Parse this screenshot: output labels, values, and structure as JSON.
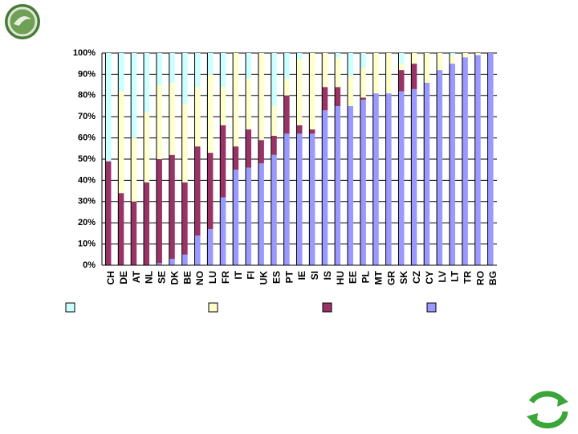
{
  "chart_data": {
    "type": "stacked_bar",
    "categories": [
      "CH",
      "DE",
      "AT",
      "NL",
      "SE",
      "DK",
      "BE",
      "NO",
      "LU",
      "FR",
      "IT",
      "FI",
      "UK",
      "ES",
      "PT",
      "IE",
      "SI",
      "IS",
      "HU",
      "EE",
      "PL",
      "MT",
      "GR",
      "SK",
      "CZ",
      "CY",
      "LV",
      "LT",
      "TR",
      "RO",
      "BG"
    ],
    "series": [
      {
        "color": "#9999ff",
        "values": [
          0,
          0,
          0,
          0,
          1,
          3,
          5,
          14,
          17,
          32,
          45,
          46,
          48,
          52,
          62,
          62,
          62,
          73,
          75,
          75,
          78,
          81,
          81,
          82,
          83,
          86,
          92,
          95,
          98,
          99,
          100
        ]
      },
      {
        "color": "#993366",
        "values": [
          49,
          34,
          30,
          39,
          49,
          49,
          34,
          42,
          36,
          34,
          11,
          18,
          11,
          9,
          18,
          4,
          2,
          11,
          9,
          0,
          1,
          0,
          0,
          10,
          12,
          0,
          0,
          0,
          0,
          0,
          0
        ]
      },
      {
        "color": "#ffffcc",
        "values": [
          0,
          48,
          30,
          33,
          35,
          34,
          37,
          28,
          37,
          18,
          44,
          24,
          41,
          14,
          8,
          31,
          36,
          16,
          14,
          14,
          14,
          19,
          19,
          3,
          5,
          14,
          8,
          4,
          2,
          1,
          0
        ]
      },
      {
        "color": "#ccffff",
        "values": [
          51,
          18,
          40,
          28,
          15,
          14,
          24,
          16,
          10,
          16,
          0,
          12,
          0,
          25,
          12,
          3,
          0,
          0,
          2,
          11,
          7,
          0,
          0,
          5,
          0,
          0,
          0,
          1,
          0,
          0,
          0
        ]
      }
    ],
    "ylim": [
      0,
      100
    ],
    "yticks": [
      {
        "value": 0,
        "label": "0%"
      },
      {
        "value": 10,
        "label": "10%"
      },
      {
        "value": 20,
        "label": "20%"
      },
      {
        "value": 30,
        "label": "30%"
      },
      {
        "value": 40,
        "label": "40%"
      },
      {
        "value": 50,
        "label": "50%"
      },
      {
        "value": 60,
        "label": "60%"
      },
      {
        "value": 70,
        "label": "70%"
      },
      {
        "value": 80,
        "label": "80%"
      },
      {
        "value": 90,
        "label": "90%"
      },
      {
        "value": 100,
        "label": "100%"
      }
    ],
    "grid": true
  }
}
